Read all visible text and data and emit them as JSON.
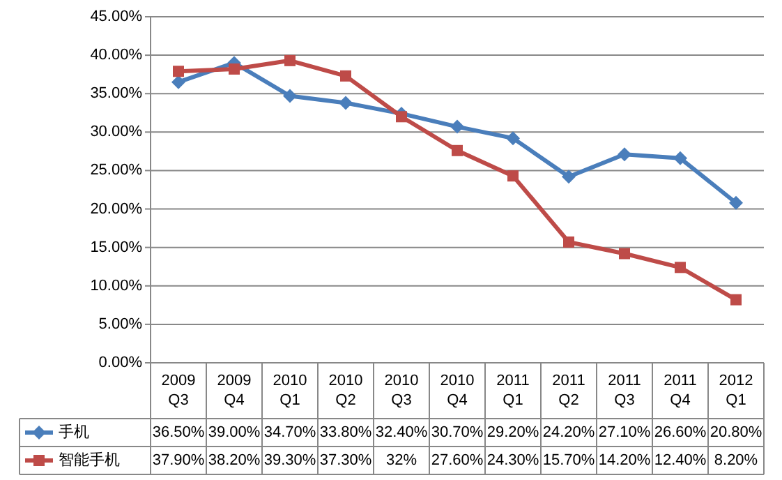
{
  "chart_data": {
    "type": "line",
    "categories": [
      "2009\nQ3",
      "2009\nQ4",
      "2010\nQ1",
      "2010\nQ2",
      "2010\nQ3",
      "2010\nQ4",
      "2011\nQ1",
      "2011\nQ2",
      "2011\nQ3",
      "2011\nQ4",
      "2012\nQ1"
    ],
    "series": [
      {
        "name": "手机",
        "color": "#4a7ebb",
        "marker": "diamond",
        "values": [
          36.5,
          39.0,
          34.7,
          33.8,
          32.4,
          30.7,
          29.2,
          24.2,
          27.1,
          26.6,
          20.8
        ],
        "value_labels": [
          "36.50%",
          "39.00%",
          "34.70%",
          "33.80%",
          "32.40%",
          "30.70%",
          "29.20%",
          "24.20%",
          "27.10%",
          "26.60%",
          "20.80%"
        ]
      },
      {
        "name": "智能手机",
        "color": "#be4b48",
        "marker": "square",
        "values": [
          37.9,
          38.2,
          39.3,
          37.3,
          32,
          27.6,
          24.3,
          15.7,
          14.2,
          12.4,
          8.2
        ],
        "value_labels": [
          "37.90%",
          "38.20%",
          "39.30%",
          "37.30%",
          "32%",
          "27.60%",
          "24.30%",
          "15.70%",
          "14.20%",
          "12.40%",
          "8.20%"
        ]
      }
    ],
    "ylim": [
      0,
      45
    ],
    "yticks": [
      {
        "value": 0,
        "label": "0.00%"
      },
      {
        "value": 5,
        "label": "5.00%"
      },
      {
        "value": 10,
        "label": "10.00%"
      },
      {
        "value": 15,
        "label": "15.00%"
      },
      {
        "value": 20,
        "label": "20.00%"
      },
      {
        "value": 25,
        "label": "25.00%"
      },
      {
        "value": 30,
        "label": "30.00%"
      },
      {
        "value": 35,
        "label": "35.00%"
      },
      {
        "value": 40,
        "label": "40.00%"
      },
      {
        "value": 45,
        "label": "45.00%"
      }
    ],
    "grid": "y",
    "legend": "bottom",
    "line_style": "solid"
  }
}
